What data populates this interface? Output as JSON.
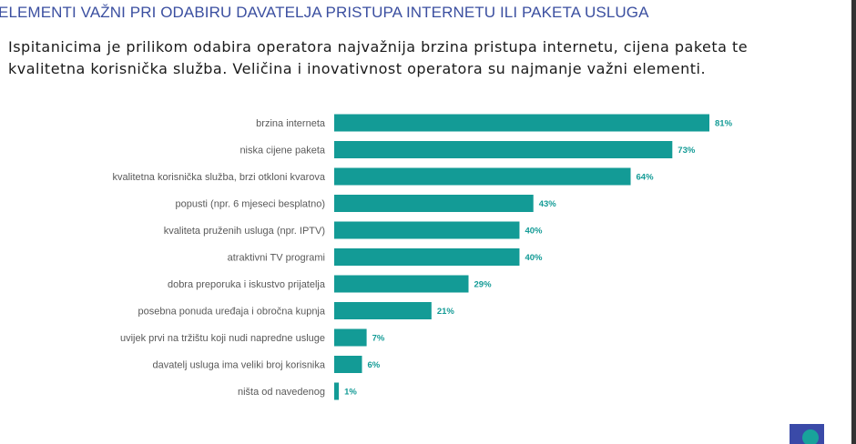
{
  "header": {
    "title": "ELEMENTI VAŽNI PRI ODABIRU DAVATELJA PRISTUPA INTERNETU ILI PAKETA USLUGA",
    "subtitle_line1": "Ispitanicima je prilikom odabira operatora najvažnija brzina pristupa internetu, cijena paketa te",
    "subtitle_line2": "kvalitetna korisnička služba. Veličina i inovativnost operatora su najmanje važni elementi."
  },
  "colors": {
    "bar": "#139b96",
    "label": "#595959",
    "value": "#139b96",
    "title": "#3b4fa0"
  },
  "chart_data": {
    "type": "bar",
    "orientation": "horizontal",
    "categories": [
      "brzina interneta",
      "niska cijene paketa",
      "kvalitetna korisnička služba, brzi otkloni kvarova",
      "popusti (npr. 6 mjeseci besplatno)",
      "kvaliteta pruženih usluga (npr. IPTV)",
      "atraktivni TV programi",
      "dobra preporuka i iskustvo prijatelja",
      "posebna ponuda uređaja i obročna kupnja",
      "uvijek prvi na tržištu koji nudi napredne usluge",
      "davatelj usluga ima veliki broj korisnika",
      "ništa od navedenog"
    ],
    "values": [
      81,
      73,
      64,
      43,
      40,
      40,
      29,
      21,
      7,
      6,
      1
    ],
    "data_labels": [
      "81%",
      "73%",
      "64%",
      "43%",
      "40%",
      "40%",
      "29%",
      "21%",
      "7%",
      "6%",
      "1%"
    ],
    "unit": "%",
    "grid": false,
    "legend": "none"
  }
}
